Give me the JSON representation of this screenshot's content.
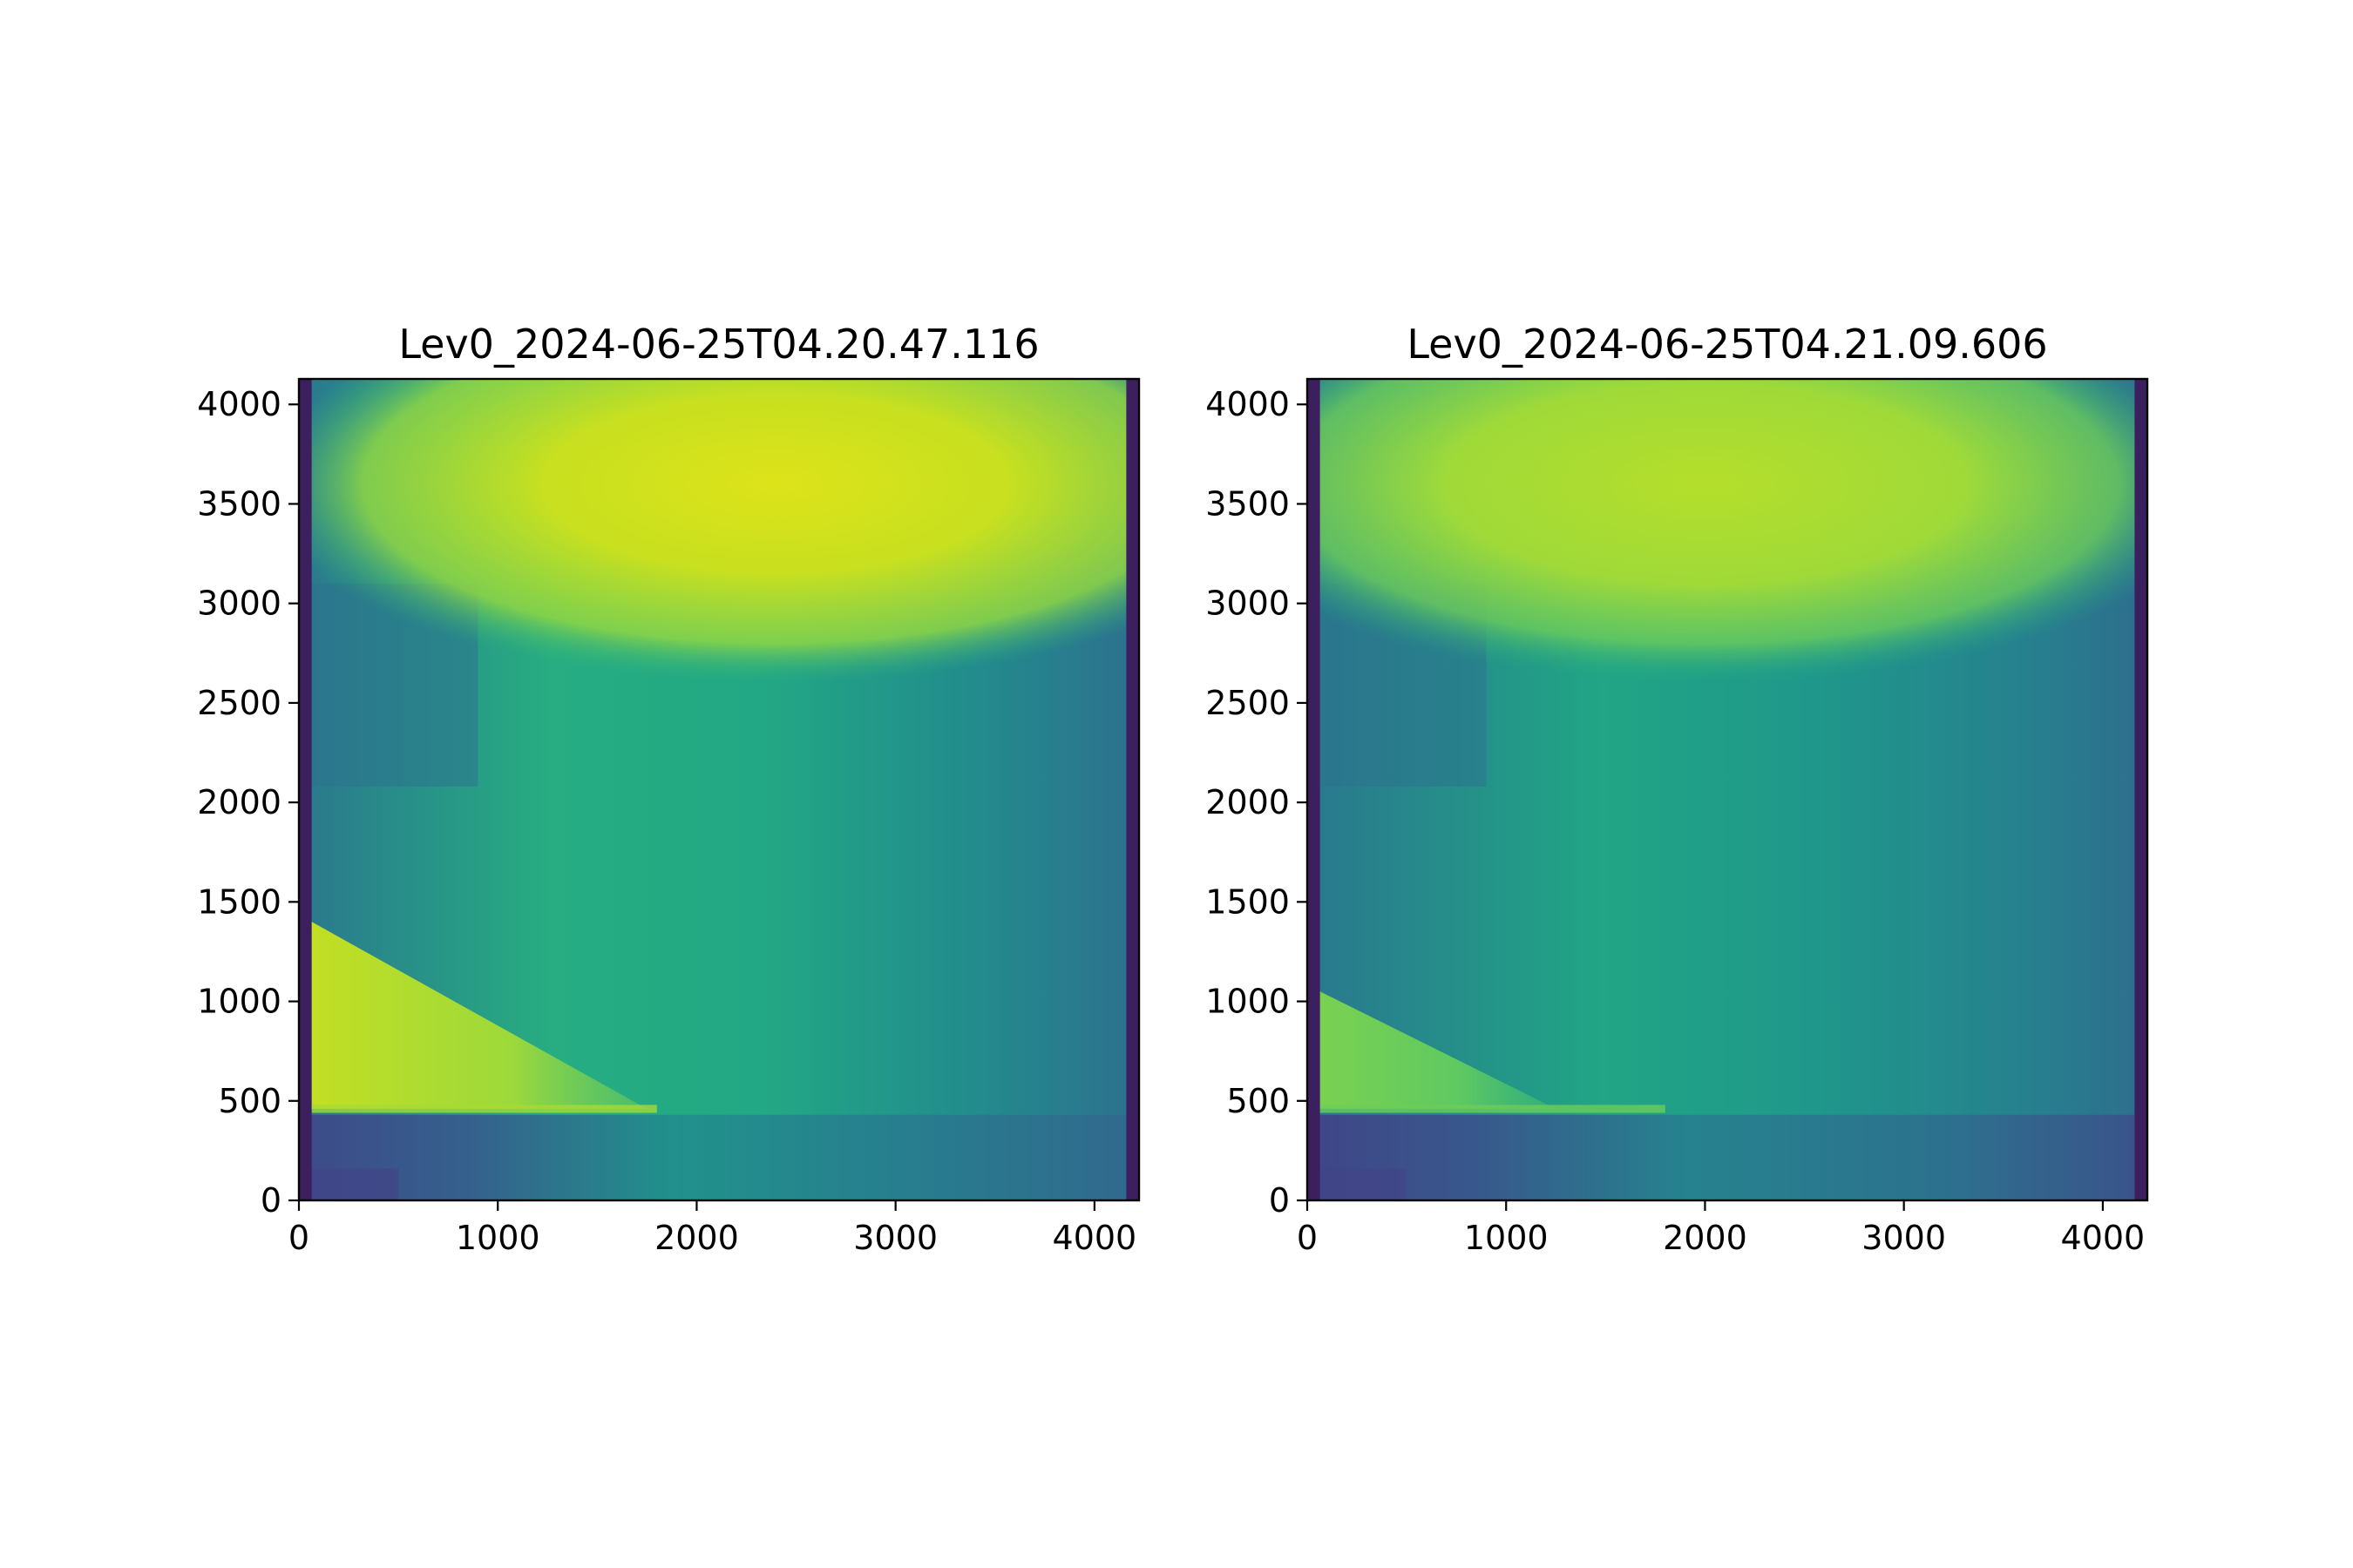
{
  "chart_data": [
    {
      "type": "heatmap",
      "title": "Lev0_2024-06-25T04.20.47.116",
      "xlim": [
        0,
        4224
      ],
      "ylim": [
        0,
        4128
      ],
      "xticks": [
        0,
        1000,
        2000,
        3000,
        4000
      ],
      "yticks": [
        0,
        500,
        1000,
        1500,
        2000,
        2500,
        3000,
        3500,
        4000
      ],
      "colormap": "viridis",
      "image_features": {
        "dark_border_columns": [
          [
            0,
            64
          ],
          [
            4160,
            4224
          ]
        ],
        "bright_ellipse_center": [
          2400,
          3600
        ],
        "horizontal_seam_y": 2080,
        "bright_wedge_top_y": 1400,
        "bright_wedge_tip_x": 1750,
        "bright_band_y": 460
      }
    },
    {
      "type": "heatmap",
      "title": "Lev0_2024-06-25T04.21.09.606",
      "xlim": [
        0,
        4224
      ],
      "ylim": [
        0,
        4128
      ],
      "xticks": [
        0,
        1000,
        2000,
        3000,
        4000
      ],
      "yticks": [
        0,
        500,
        1000,
        1500,
        2000,
        2500,
        3000,
        3500,
        4000
      ],
      "colormap": "viridis",
      "image_features": {
        "dark_border_columns": [
          [
            0,
            64
          ],
          [
            4160,
            4224
          ]
        ],
        "bright_ellipse_center": [
          2000,
          3600
        ],
        "horizontal_seam_y": 2080,
        "bright_wedge_top_y": 1050,
        "bright_wedge_tip_x": 1250,
        "bright_band_y": 460
      }
    }
  ]
}
